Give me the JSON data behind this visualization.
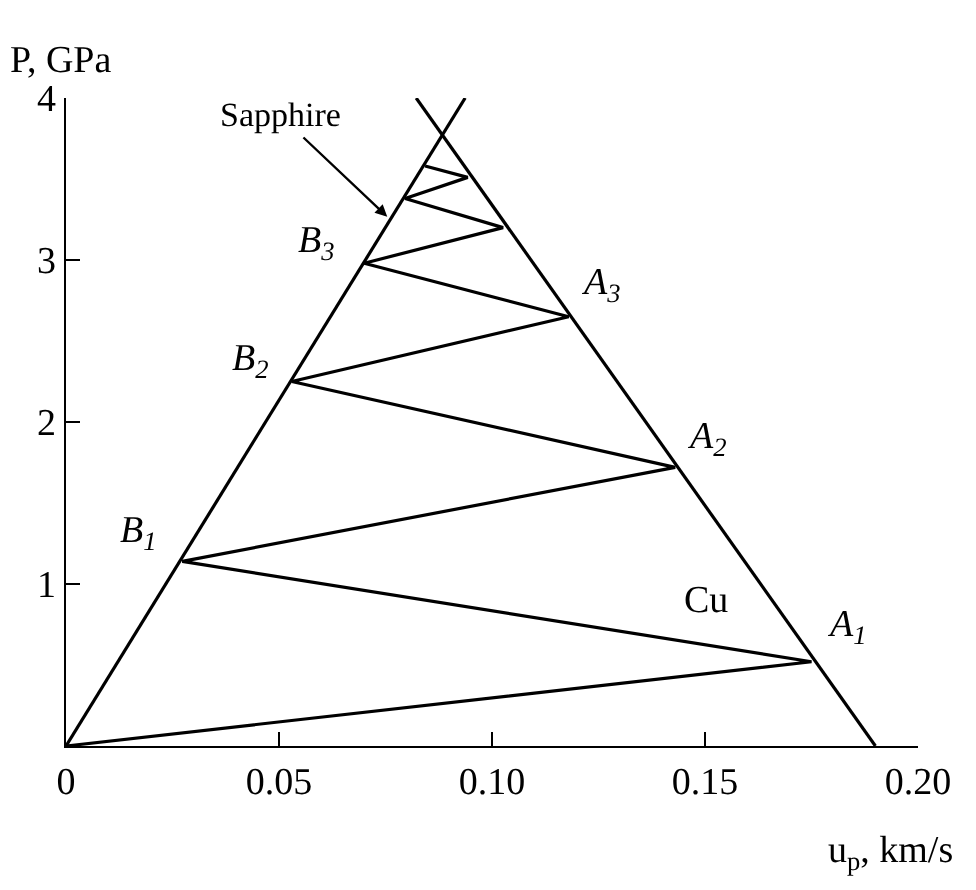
{
  "chart_data": {
    "type": "line",
    "xlabel": "u$_{p}$, km/s",
    "ylabel": "P, GPa",
    "xlim": [
      0,
      0.2
    ],
    "ylim": [
      0,
      4
    ],
    "xticks": [
      0,
      {
        "value": 0.05,
        "label": "0.05"
      },
      {
        "value": 0.1,
        "label": "0.10"
      },
      {
        "value": 0.15,
        "label": "0.15"
      },
      {
        "value": 0.2,
        "label": "0.20"
      }
    ],
    "yticks": [
      1,
      2,
      3,
      4
    ],
    "marker": "none",
    "line_style": "solid",
    "series": [
      {
        "color": "#000000",
        "x": [
          0,
          0.0937
        ],
        "values": [
          0,
          4.0
        ]
      },
      {
        "color": "#000000",
        "x": [
          0.19,
          0.0822
        ],
        "values": [
          0,
          4.0
        ]
      },
      {
        "color": "#000000",
        "x": [
          0,
          0.175,
          0.0273,
          0.143,
          0.053,
          0.118,
          0.07,
          0.1026,
          0.0796,
          0.0943,
          0.0843
        ],
        "values": [
          0,
          0.52,
          1.14,
          1.72,
          2.25,
          2.65,
          2.98,
          3.2,
          3.38,
          3.51,
          3.58
        ]
      }
    ],
    "annotations": [
      {
        "text": "Sapphire",
        "x": 0.0761,
        "y": 3.25
      },
      {
        "text": "B$_{3}$",
        "x": 0.07,
        "y": 2.98
      },
      {
        "text": "B$_{2}$",
        "x": 0.053,
        "y": 2.25
      },
      {
        "text": "B$_{1}$",
        "x": 0.0273,
        "y": 1.14
      },
      {
        "text": "A$_{3}$",
        "x": 0.118,
        "y": 2.65
      },
      {
        "text": "A$_{2}$",
        "x": 0.143,
        "y": 1.72
      },
      {
        "text": "A$_{1}$",
        "x": 0.175,
        "y": 0.52
      },
      {
        "text": "Cu",
        "x": 0.1658,
        "y": 0.9
      }
    ]
  }
}
